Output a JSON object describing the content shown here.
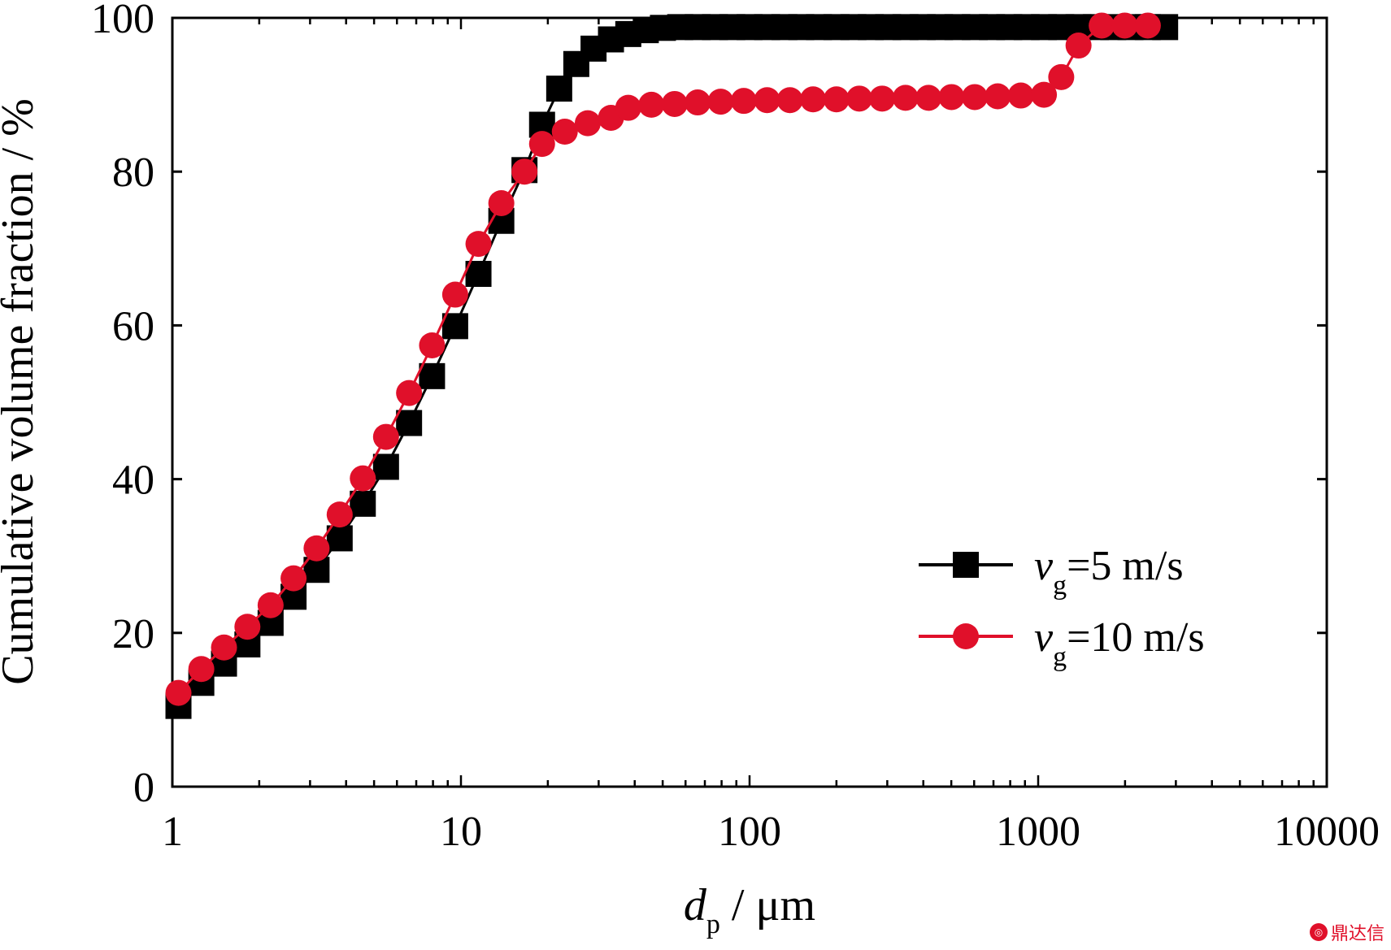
{
  "chart_data": {
    "type": "line",
    "xlabel": {
      "main": "d",
      "sub": "p",
      "rest": " / μm"
    },
    "ylabel": "Cumulative volume fraction / %",
    "xscale": "log",
    "xlim": [
      1,
      10000
    ],
    "ylim": [
      0,
      100
    ],
    "xticks": [
      1,
      10,
      100,
      1000,
      10000
    ],
    "xtick_labels": [
      "1",
      "10",
      "100",
      "1000",
      "10000"
    ],
    "yticks": [
      0,
      20,
      40,
      60,
      80,
      100
    ],
    "ytick_labels": [
      "0",
      "20",
      "40",
      "60",
      "80",
      "100"
    ],
    "grid": false,
    "legend_position": "lower-right",
    "series": [
      {
        "name": {
          "main": "v",
          "sub": "g",
          "rest": "=5 m/s"
        },
        "color": "#000000",
        "marker": "square",
        "x": [
          1.05,
          1.26,
          1.51,
          1.82,
          2.19,
          2.63,
          3.16,
          3.8,
          4.57,
          5.5,
          6.61,
          7.94,
          9.55,
          11.5,
          13.8,
          16.6,
          19.1,
          21.9,
          25.1,
          28.8,
          33.1,
          38.0,
          43.7,
          50.1,
          57.5,
          66.1,
          75.9,
          87.1,
          100,
          115,
          132,
          151,
          174,
          200,
          229,
          263,
          302,
          347,
          398,
          457,
          525,
          603,
          692,
          794,
          912,
          1047,
          1202,
          1380,
          1585,
          1820,
          2089,
          2399,
          2754
        ],
        "y": [
          10.5,
          13.5,
          16.0,
          18.5,
          21.3,
          24.7,
          28.2,
          32.3,
          36.8,
          41.6,
          47.3,
          53.4,
          59.9,
          66.7,
          73.6,
          80.2,
          86.1,
          90.8,
          94.0,
          96.0,
          97.2,
          97.9,
          98.4,
          98.7,
          98.8,
          98.8,
          98.8,
          98.8,
          98.8,
          98.8,
          98.8,
          98.8,
          98.8,
          98.8,
          98.8,
          98.8,
          98.8,
          98.8,
          98.8,
          98.8,
          98.8,
          98.8,
          98.8,
          98.8,
          98.8,
          98.8,
          98.8,
          98.8,
          98.8,
          98.8,
          98.8,
          98.8,
          98.8
        ]
      },
      {
        "name": {
          "main": "v",
          "sub": "g",
          "rest": "=10 m/s"
        },
        "color": "#e0102a",
        "marker": "circle",
        "x": [
          1.05,
          1.26,
          1.51,
          1.82,
          2.19,
          2.63,
          3.16,
          3.8,
          4.57,
          5.5,
          6.61,
          7.94,
          9.55,
          11.5,
          13.8,
          16.6,
          19.1,
          22.9,
          27.5,
          33.1,
          38.0,
          45.7,
          55.0,
          66.1,
          79.4,
          95.5,
          115,
          138,
          166,
          200,
          240,
          288,
          347,
          417,
          501,
          603,
          724,
          871,
          1047,
          1202,
          1380,
          1660,
          1995,
          2399
        ],
        "y": [
          12.2,
          15.3,
          18.1,
          20.8,
          23.6,
          27.1,
          31.0,
          35.4,
          40.1,
          45.5,
          51.2,
          57.4,
          64.0,
          70.6,
          75.9,
          80.0,
          83.6,
          85.2,
          86.3,
          87.0,
          88.3,
          88.7,
          88.8,
          89.0,
          89.1,
          89.2,
          89.3,
          89.3,
          89.4,
          89.4,
          89.5,
          89.5,
          89.6,
          89.6,
          89.7,
          89.7,
          89.8,
          89.9,
          90.0,
          92.3,
          96.4,
          99.0,
          99.0,
          99.0
        ]
      }
    ]
  },
  "watermark": "鼎达信"
}
